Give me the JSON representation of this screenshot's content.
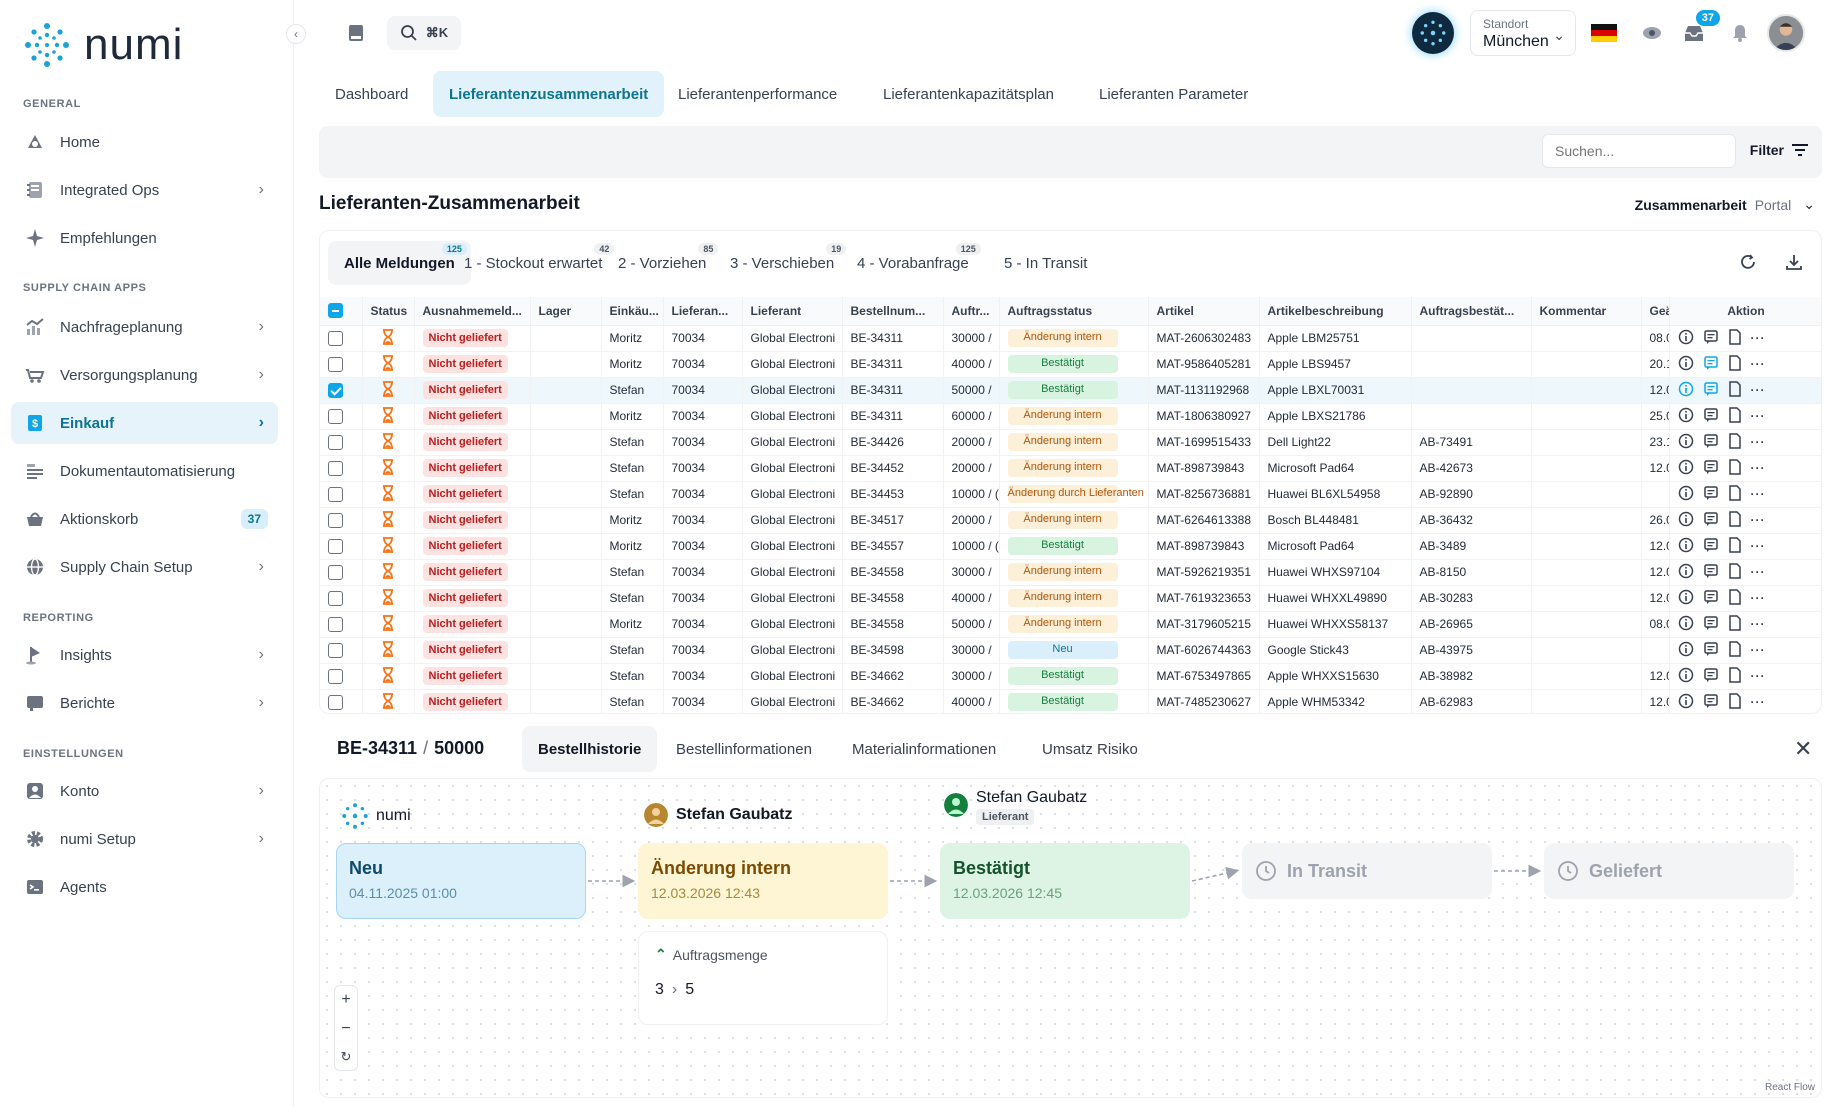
{
  "app": {
    "name": "numi"
  },
  "sidebar": {
    "sections": [
      {
        "label": "GENERAL"
      },
      {
        "label": "SUPPLY CHAIN APPS"
      },
      {
        "label": "REPORTING"
      },
      {
        "label": "EINSTELLUNGEN"
      }
    ],
    "items": [
      {
        "label": "Home",
        "icon": "home-icon",
        "chevron": false
      },
      {
        "label": "Integrated Ops",
        "icon": "notebook-icon",
        "chevron": true
      },
      {
        "label": "Empfehlungen",
        "icon": "sparkle-icon",
        "chevron": false
      },
      {
        "label": "Nachfrageplanung",
        "icon": "chart-icon",
        "chevron": true
      },
      {
        "label": "Versorgungsplanung",
        "icon": "truck-icon",
        "chevron": true
      },
      {
        "label": "Einkauf",
        "icon": "purchase-icon",
        "chevron": true,
        "active": true
      },
      {
        "label": "Dokumentautomatisierung",
        "icon": "document-icon",
        "chevron": false
      },
      {
        "label": "Aktionskorb",
        "icon": "basket-icon",
        "chevron": false,
        "badge": "37"
      },
      {
        "label": "Supply Chain Setup",
        "icon": "globe-icon",
        "chevron": true
      },
      {
        "label": "Insights",
        "icon": "pin-icon",
        "chevron": true
      },
      {
        "label": "Berichte",
        "icon": "report-icon",
        "chevron": true
      },
      {
        "label": "Konto",
        "icon": "user-icon",
        "chevron": true
      },
      {
        "label": "numi Setup",
        "icon": "gear-icon",
        "chevron": true
      },
      {
        "label": "Agents",
        "icon": "terminal-icon",
        "chevron": false
      }
    ]
  },
  "topbar": {
    "search_shortcut": "⌘K",
    "location_label": "Standort",
    "location_value": "München",
    "notification_count": "37"
  },
  "main_tabs": [
    {
      "label": "Dashboard"
    },
    {
      "label": "Lieferantenzusammenarbeit",
      "active": true
    },
    {
      "label": "Lieferantenperformance"
    },
    {
      "label": "Lieferantenkapazitätsplan"
    },
    {
      "label": "Lieferanten Parameter"
    }
  ],
  "filterbar": {
    "search_placeholder": "Suchen...",
    "filter_label": "Filter"
  },
  "section": {
    "title": "Lieferanten-Zusammenarbeit",
    "toggle_active": "Zusammenarbeit",
    "toggle_other": "Portal"
  },
  "sub_tabs": [
    {
      "label": "Alle Meldungen",
      "count": "125",
      "active": true
    },
    {
      "label": "1 - Stockout erwartet",
      "count": "42"
    },
    {
      "label": "2 - Vorziehen",
      "count": "85"
    },
    {
      "label": "3 - Verschieben",
      "count": "19"
    },
    {
      "label": "4 - Vorabanfrage",
      "count": "125"
    },
    {
      "label": "5 - In Transit",
      "count": ""
    }
  ],
  "table": {
    "columns": [
      "Status",
      "Ausnahmemeld...",
      "Lager",
      "Einkäu...",
      "Lieferan...",
      "Lieferant",
      "Bestellnum...",
      "Auftr...",
      "Auftragsstatus",
      "Artikel",
      "Artikelbeschreibung",
      "Auftragsbestät...",
      "Kommentar",
      "Geä",
      "Aktion"
    ],
    "rows": [
      {
        "exc": "Nicht geliefert",
        "buyer": "Moritz",
        "supplier_no": "70034",
        "supplier": "Global Electroni",
        "order": "BE-34311",
        "qty": "30000 /",
        "status": "Änderung intern",
        "status_color": "orange",
        "article": "MAT-2606302483",
        "desc": "Apple LBM25751",
        "conf": "",
        "changed": "08.0",
        "checked": false,
        "highlight": false
      },
      {
        "exc": "Nicht geliefert",
        "buyer": "Moritz",
        "supplier_no": "70034",
        "supplier": "Global Electroni",
        "order": "BE-34311",
        "qty": "40000 /",
        "status": "Bestätigt",
        "status_color": "green",
        "article": "MAT-9586405281",
        "desc": "Apple LBS9457",
        "conf": "",
        "changed": "20.1",
        "checked": false,
        "highlight": true
      },
      {
        "exc": "Nicht geliefert",
        "buyer": "Stefan",
        "supplier_no": "70034",
        "supplier": "Global Electroni",
        "order": "BE-34311",
        "qty": "50000 /",
        "status": "Bestätigt",
        "status_color": "green",
        "article": "MAT-1131192968",
        "desc": "Apple LBXL70031",
        "conf": "",
        "changed": "12.0",
        "checked": true,
        "highlight": true
      },
      {
        "exc": "Nicht geliefert",
        "buyer": "Moritz",
        "supplier_no": "70034",
        "supplier": "Global Electroni",
        "order": "BE-34311",
        "qty": "60000 /",
        "status": "Änderung intern",
        "status_color": "orange",
        "article": "MAT-1806380927",
        "desc": "Apple LBXS21786",
        "conf": "",
        "changed": "25.0",
        "checked": false,
        "highlight": false
      },
      {
        "exc": "Nicht geliefert",
        "buyer": "Stefan",
        "supplier_no": "70034",
        "supplier": "Global Electroni",
        "order": "BE-34426",
        "qty": "20000 /",
        "status": "Änderung intern",
        "status_color": "orange",
        "article": "MAT-1699515433",
        "desc": "Dell Light22",
        "conf": "AB-73491",
        "changed": "23.1",
        "checked": false,
        "highlight": false
      },
      {
        "exc": "Nicht geliefert",
        "buyer": "Stefan",
        "supplier_no": "70034",
        "supplier": "Global Electroni",
        "order": "BE-34452",
        "qty": "20000 /",
        "status": "Änderung intern",
        "status_color": "orange",
        "article": "MAT-898739843",
        "desc": "Microsoft Pad64",
        "conf": "AB-42673",
        "changed": "12.0",
        "checked": false,
        "highlight": false
      },
      {
        "exc": "Nicht geliefert",
        "buyer": "Stefan",
        "supplier_no": "70034",
        "supplier": "Global Electroni",
        "order": "BE-34453",
        "qty": "10000 / (",
        "status": "Änderung durch Lieferanten",
        "status_color": "orange",
        "article": "MAT-8256736881",
        "desc": "Huawei BL6XL54958",
        "conf": "AB-92890",
        "changed": "",
        "checked": false,
        "highlight": false
      },
      {
        "exc": "Nicht geliefert",
        "buyer": "Moritz",
        "supplier_no": "70034",
        "supplier": "Global Electroni",
        "order": "BE-34517",
        "qty": "20000 /",
        "status": "Änderung intern",
        "status_color": "orange",
        "article": "MAT-6264613388",
        "desc": "Bosch BL448481",
        "conf": "AB-36432",
        "changed": "26.0",
        "checked": false,
        "highlight": false
      },
      {
        "exc": "Nicht geliefert",
        "buyer": "Moritz",
        "supplier_no": "70034",
        "supplier": "Global Electroni",
        "order": "BE-34557",
        "qty": "10000 / (",
        "status": "Bestätigt",
        "status_color": "green",
        "article": "MAT-898739843",
        "desc": "Microsoft Pad64",
        "conf": "AB-3489",
        "changed": "12.0",
        "checked": false,
        "highlight": false
      },
      {
        "exc": "Nicht geliefert",
        "buyer": "Stefan",
        "supplier_no": "70034",
        "supplier": "Global Electroni",
        "order": "BE-34558",
        "qty": "30000 /",
        "status": "Änderung intern",
        "status_color": "orange",
        "article": "MAT-5926219351",
        "desc": "Huawei WHXS97104",
        "conf": "AB-8150",
        "changed": "12.0",
        "checked": false,
        "highlight": false
      },
      {
        "exc": "Nicht geliefert",
        "buyer": "Stefan",
        "supplier_no": "70034",
        "supplier": "Global Electroni",
        "order": "BE-34558",
        "qty": "40000 /",
        "status": "Änderung intern",
        "status_color": "orange",
        "article": "MAT-7619323653",
        "desc": "Huawei WHXXL49890",
        "conf": "AB-30283",
        "changed": "12.0",
        "checked": false,
        "highlight": false
      },
      {
        "exc": "Nicht geliefert",
        "buyer": "Moritz",
        "supplier_no": "70034",
        "supplier": "Global Electroni",
        "order": "BE-34558",
        "qty": "50000 /",
        "status": "Änderung intern",
        "status_color": "orange",
        "article": "MAT-3179605215",
        "desc": "Huawei WHXXS58137",
        "conf": "AB-26965",
        "changed": "08.0",
        "checked": false,
        "highlight": false
      },
      {
        "exc": "Nicht geliefert",
        "buyer": "Stefan",
        "supplier_no": "70034",
        "supplier": "Global Electroni",
        "order": "BE-34598",
        "qty": "30000 /",
        "status": "Neu",
        "status_color": "blue",
        "article": "MAT-6026744363",
        "desc": "Google Stick43",
        "conf": "AB-43975",
        "changed": "",
        "checked": false,
        "highlight": false
      },
      {
        "exc": "Nicht geliefert",
        "buyer": "Stefan",
        "supplier_no": "70034",
        "supplier": "Global Electroni",
        "order": "BE-34662",
        "qty": "30000 /",
        "status": "Bestätigt",
        "status_color": "green",
        "article": "MAT-6753497865",
        "desc": "Apple WHXXS15630",
        "conf": "AB-38982",
        "changed": "12.0",
        "checked": false,
        "highlight": false
      },
      {
        "exc": "Nicht geliefert",
        "buyer": "Stefan",
        "supplier_no": "70034",
        "supplier": "Global Electroni",
        "order": "BE-34662",
        "qty": "40000 /",
        "status": "Bestätigt",
        "status_color": "green",
        "article": "MAT-7485230627",
        "desc": "Apple WHM53342",
        "conf": "AB-62983",
        "changed": "12.0",
        "checked": false,
        "highlight": false
      }
    ]
  },
  "detail": {
    "order": "BE-34311",
    "qty": "50000",
    "tabs": [
      {
        "label": "Bestellhistorie",
        "active": true
      },
      {
        "label": "Bestellinformationen"
      },
      {
        "label": "Materialinformationen"
      },
      {
        "label": "Umsatz Risiko"
      }
    ]
  },
  "flow": {
    "actors": [
      {
        "name": "numi"
      },
      {
        "name": "Stefan Gaubatz"
      },
      {
        "name": "Stefan Gaubatz",
        "role": "Lieferant"
      }
    ],
    "nodes": [
      {
        "title": "Neu",
        "date": "04.11.2025 01:00"
      },
      {
        "title": "Änderung intern",
        "date": "12.03.2026 12:43"
      },
      {
        "title": "Bestätigt",
        "date": "12.03.2026 12:45"
      },
      {
        "title": "In Transit"
      },
      {
        "title": "Geliefert"
      }
    ],
    "change": {
      "label": "Auftragsmenge",
      "from": "3",
      "to": "5"
    },
    "attribution": "React Flow"
  }
}
